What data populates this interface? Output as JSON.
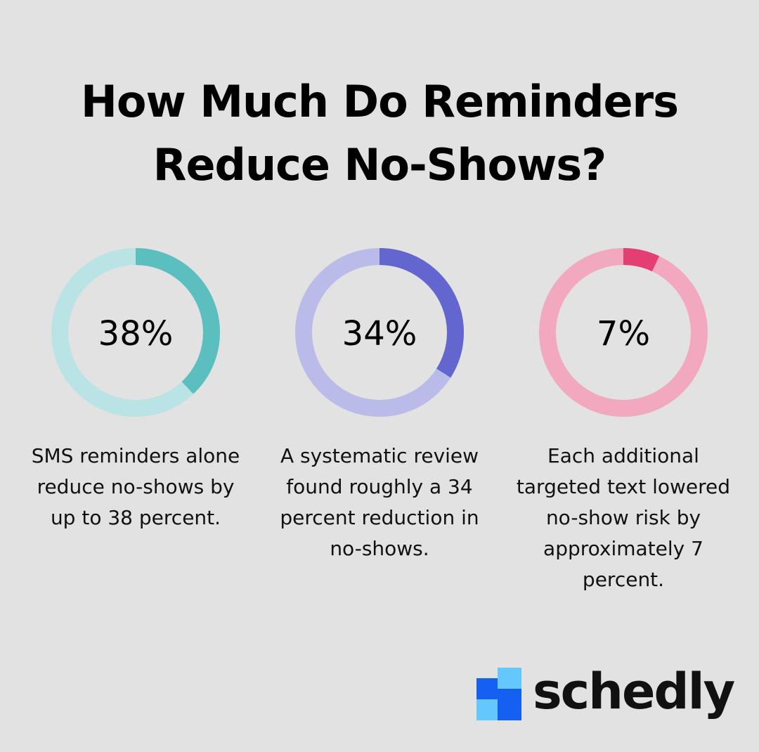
{
  "title_lines": [
    "How Much Do Reminders",
    "Reduce No-Shows?"
  ],
  "chart_data": [
    {
      "type": "pie",
      "values": [
        38
      ],
      "label": "38%",
      "description": "SMS reminders alone reduce no-shows by up to 38 percent.",
      "colors": {
        "arc": "#5bbfbf",
        "track": "#b9e3e4"
      }
    },
    {
      "type": "pie",
      "values": [
        34
      ],
      "label": "34%",
      "description": "A systematic review found roughly a 34 percent reduction in no-shows.",
      "colors": {
        "arc": "#6366cf",
        "track": "#bbbbea"
      }
    },
    {
      "type": "pie",
      "values": [
        7
      ],
      "label": "7%",
      "description": "Each additional targeted text lowered no-show risk by approximately 7 percent.",
      "colors": {
        "arc": "#e33f72",
        "track": "#f2a9c0"
      }
    }
  ],
  "logo": {
    "text": "schedly",
    "colors": {
      "dark_blue": "#1560f0",
      "light_blue": "#64c8ff"
    }
  }
}
